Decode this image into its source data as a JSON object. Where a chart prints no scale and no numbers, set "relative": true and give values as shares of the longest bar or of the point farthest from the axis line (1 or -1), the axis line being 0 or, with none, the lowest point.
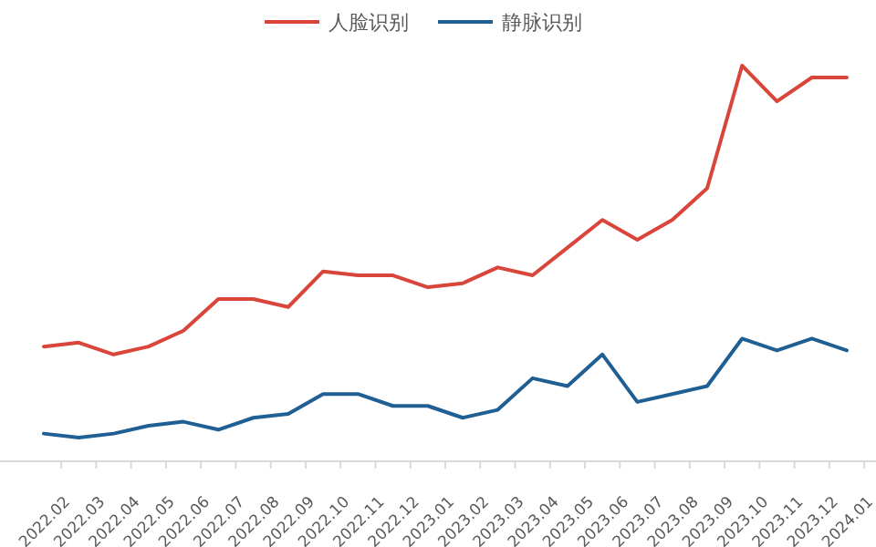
{
  "chart_data": {
    "type": "line",
    "relative": true,
    "legend": "top",
    "categories": [
      "2022.02",
      "2022.03",
      "2022.04",
      "2022.05",
      "2022.06",
      "2022.07",
      "2022.08",
      "2022.09",
      "2022.10",
      "2022.11",
      "2022.12",
      "2023.01",
      "2023.02",
      "2023.03",
      "2023.04",
      "2023.05",
      "2023.06",
      "2023.07",
      "2023.08",
      "2023.09",
      "2023.10",
      "2023.11",
      "2023.12",
      "2024.01"
    ],
    "series": [
      {
        "name": "人脸识别",
        "color": "#d9453b",
        "values": [
          0.29,
          0.3,
          0.27,
          0.29,
          0.33,
          0.41,
          0.41,
          0.39,
          0.48,
          0.47,
          0.47,
          0.44,
          0.45,
          0.49,
          0.47,
          0.54,
          0.61,
          0.56,
          0.61,
          0.69,
          1,
          0.91,
          0.97,
          0.97
        ]
      },
      {
        "name": "静脉识别",
        "color": "#1f5f94",
        "values": [
          0.07,
          0.06,
          0.07,
          0.09,
          0.1,
          0.08,
          0.11,
          0.12,
          0.17,
          0.17,
          0.14,
          0.14,
          0.11,
          0.13,
          0.21,
          0.19,
          0.27,
          0.15,
          0.17,
          0.19,
          0.31,
          0.28,
          0.31,
          0.28
        ]
      }
    ]
  }
}
